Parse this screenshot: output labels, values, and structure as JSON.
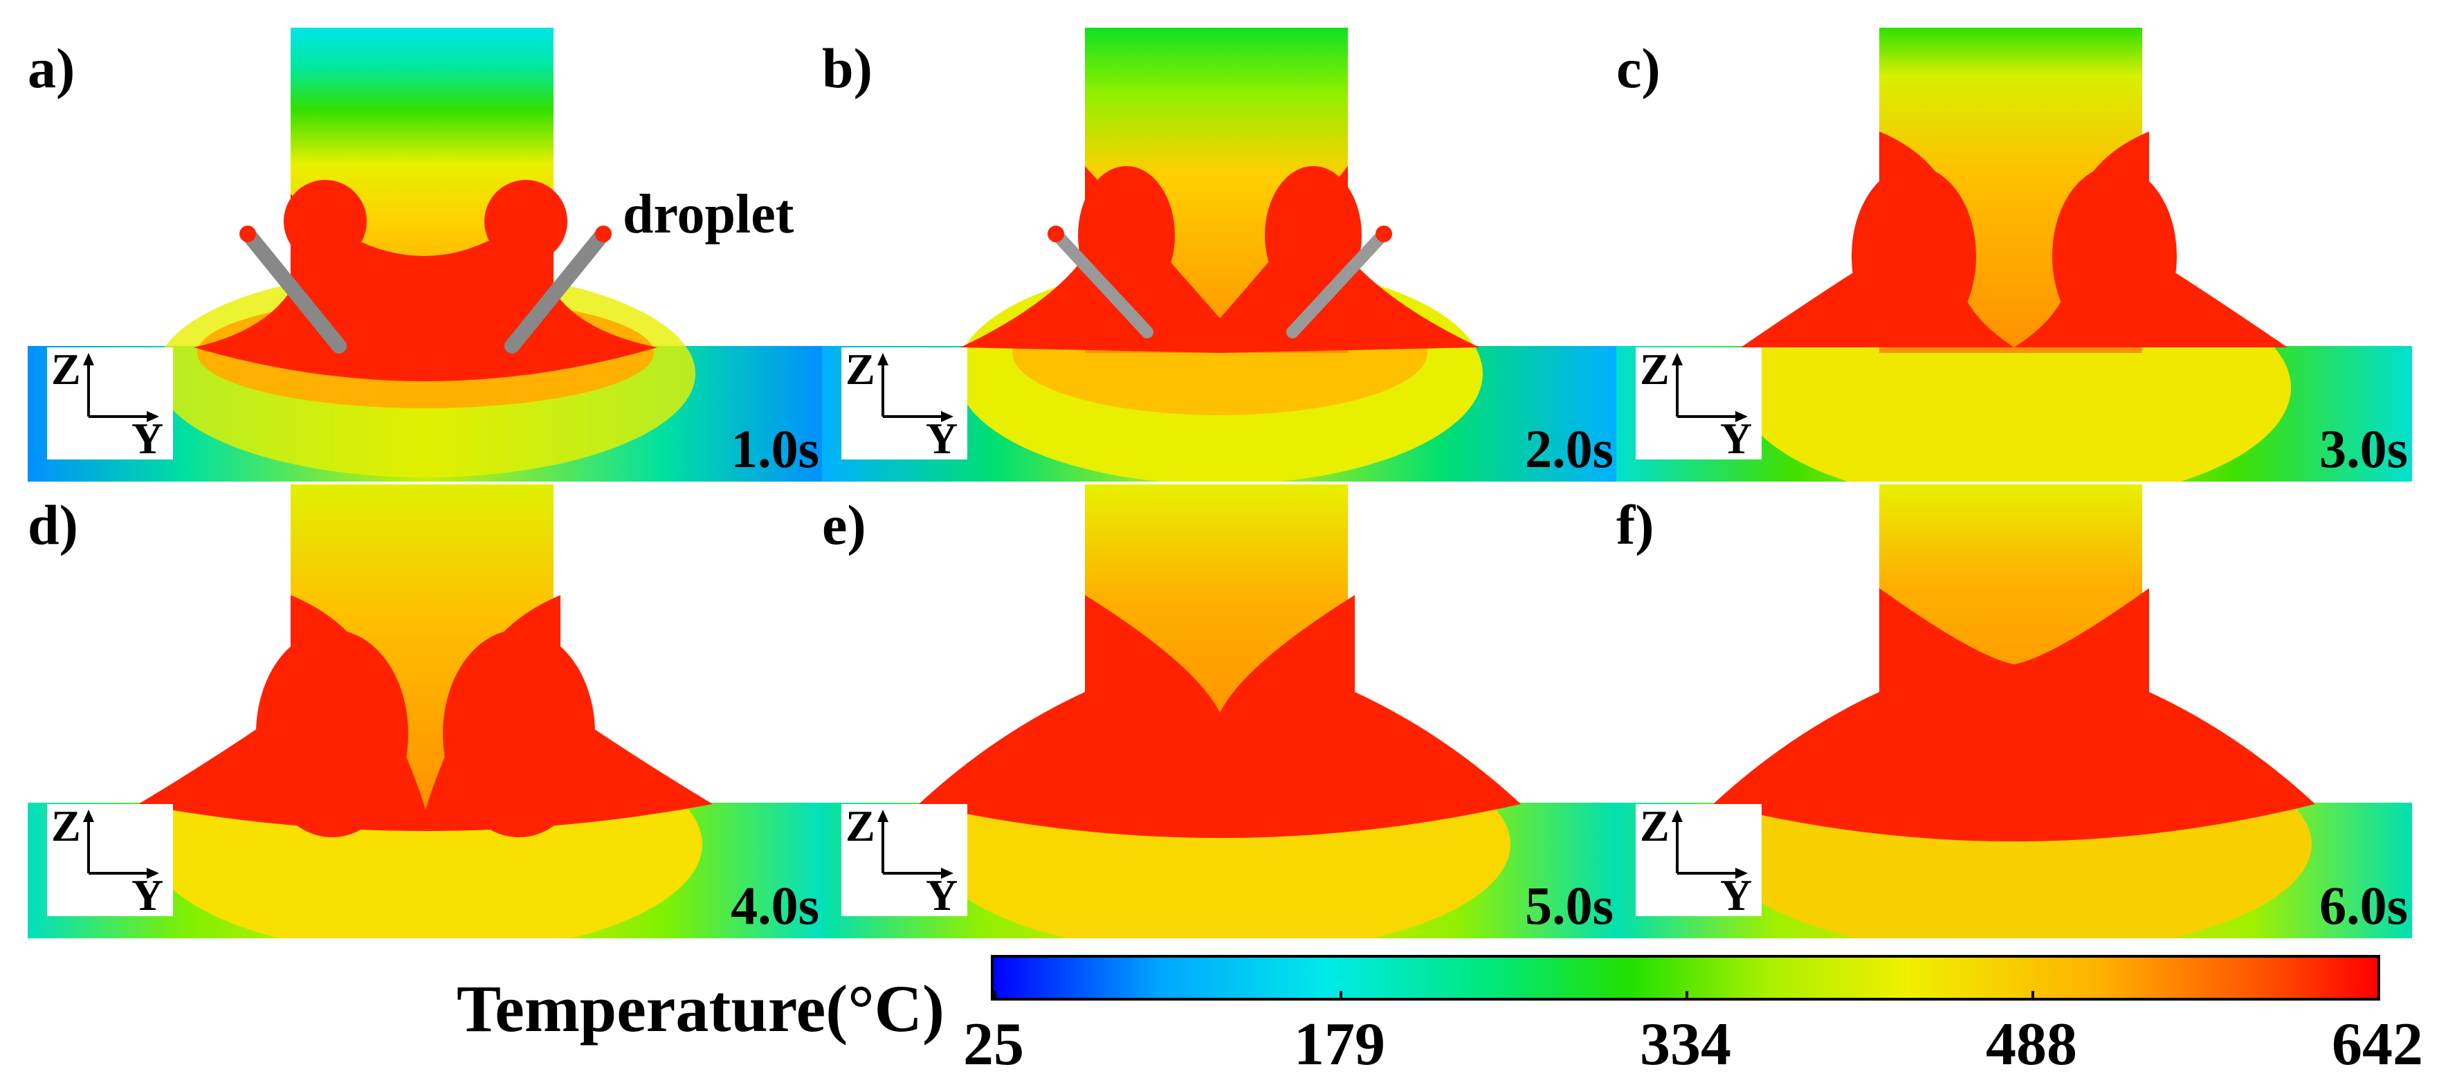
{
  "panels": [
    {
      "letter": "a)",
      "time": "1.0s"
    },
    {
      "letter": "b)",
      "time": "2.0s"
    },
    {
      "letter": "c)",
      "time": "3.0s"
    },
    {
      "letter": "d)",
      "time": "4.0s"
    },
    {
      "letter": "e)",
      "time": "5.0s"
    },
    {
      "letter": "f)",
      "time": "6.0s"
    }
  ],
  "droplet_label": "droplet",
  "axes": {
    "z": "Z",
    "y": "Y"
  },
  "legend": {
    "title": "Temperature(°C)",
    "ticks": [
      "25",
      "179",
      "334",
      "488",
      "642"
    ],
    "min": 25,
    "max": 642
  },
  "colors": {
    "cold": "#0000ff",
    "hot": "#ff0000"
  }
}
